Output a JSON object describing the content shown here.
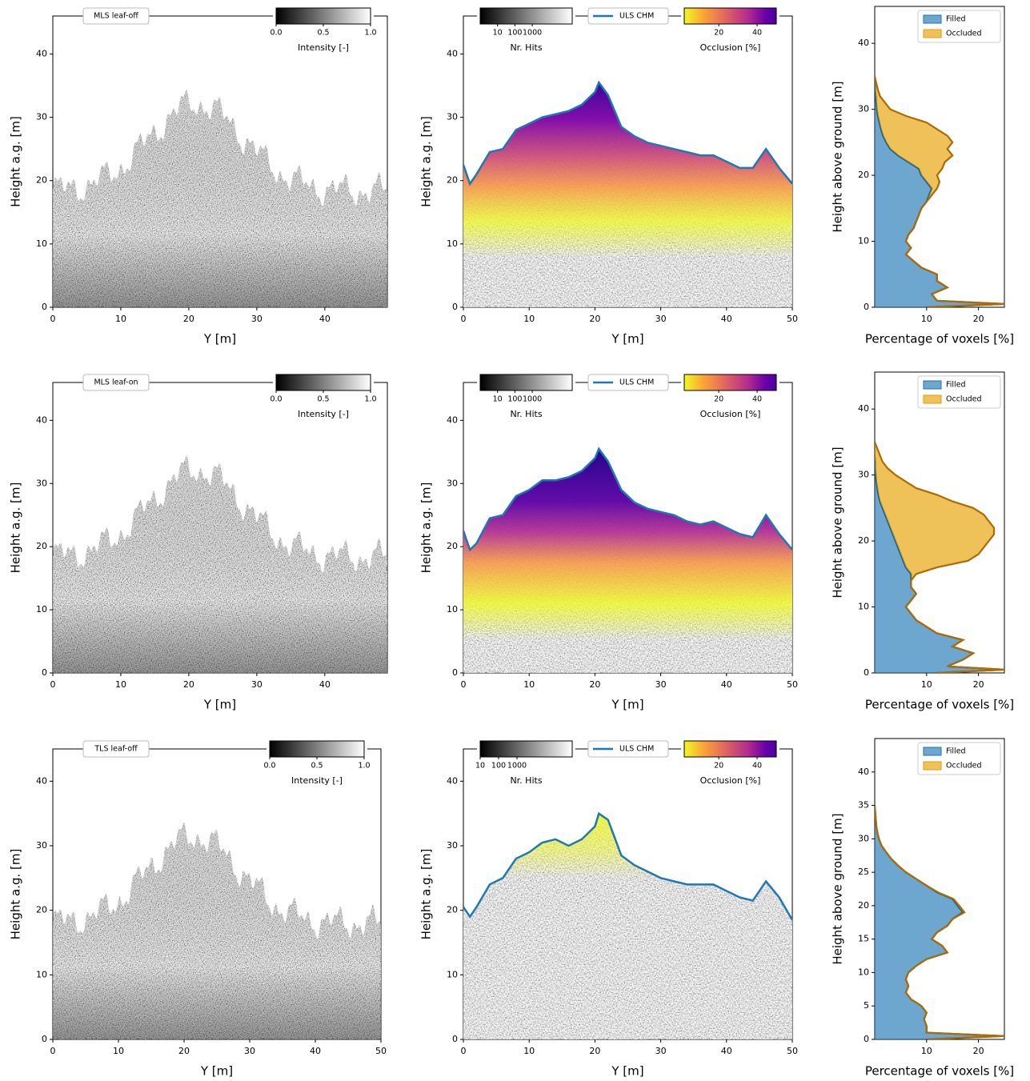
{
  "chart_data": [
    {
      "type": "pointcloud",
      "label": "MLS leaf-off",
      "xlabel": "Y [m]",
      "ylabel": "Height a.g. [m]",
      "xlim": [
        0,
        49.2
      ],
      "xticks": [
        0,
        10,
        20,
        30,
        40
      ],
      "ylim": [
        0,
        46
      ],
      "yticks": [
        0,
        10,
        20,
        30,
        40
      ],
      "colorbar": {
        "label": "Intensity [-]",
        "colormap": "gray",
        "lim": [
          0,
          1
        ],
        "ticks": [
          {
            "value": 0,
            "label": "0.0"
          },
          {
            "value": 0.5,
            "label": "0.5"
          },
          {
            "value": 1,
            "label": "1.0"
          }
        ]
      }
    },
    {
      "type": "line",
      "xlabel": "Y [m]",
      "ylabel": "Height a.g. [m]",
      "xlim": [
        0,
        50
      ],
      "xticks": [
        0,
        10,
        20,
        30,
        40,
        50
      ],
      "ylim": [
        0,
        46
      ],
      "yticks": [
        0,
        10,
        20,
        30,
        40
      ],
      "x": [
        0,
        1,
        2,
        4,
        6,
        8,
        10,
        12,
        14,
        16,
        18,
        20,
        20.6,
        22,
        24,
        26,
        28,
        30,
        32,
        34,
        36,
        38,
        40,
        42,
        44,
        46,
        48,
        50
      ],
      "series": [
        {
          "name": "ULS CHM",
          "color": "#1f77b4",
          "values": [
            22.5,
            19.5,
            21,
            24.5,
            25,
            28,
            29,
            30,
            30.5,
            31,
            32,
            34,
            35.5,
            33.5,
            28.5,
            27,
            26,
            25.5,
            25,
            24.5,
            24,
            24,
            23,
            22,
            22,
            25,
            22,
            19.5
          ]
        }
      ],
      "colorbars": [
        {
          "label": "Nr. Hits",
          "colormap": "gray",
          "log": true,
          "lim": [
            1,
            200000
          ],
          "ticks": [
            10,
            100,
            1000
          ]
        },
        {
          "label": "Occlusion [%]",
          "colormap": "plasma_r",
          "lim": [
            2,
            50
          ],
          "ticks": [
            20,
            40
          ]
        }
      ]
    },
    {
      "type": "area",
      "stacked": true,
      "xlabel": "Percentage of voxels [%]",
      "ylabel": "Height above ground [m]",
      "xlim": [
        0,
        25
      ],
      "xticks": [
        10,
        20
      ],
      "ylim": [
        0,
        45.6
      ],
      "yticks": [
        0,
        10,
        20,
        30,
        40
      ],
      "legend": "upper right",
      "y": [
        0,
        0.5,
        1,
        2,
        3,
        4,
        5,
        6,
        7,
        8,
        9,
        10,
        11,
        12,
        13,
        14,
        15,
        16,
        17,
        18,
        19,
        20,
        21,
        22,
        23,
        24,
        25,
        26,
        27,
        28,
        29,
        30,
        31,
        32,
        33,
        34,
        35
      ],
      "series": [
        {
          "name": "Filled",
          "color": "#1f77b4",
          "edge": "#0b5a8a",
          "values": [
            10,
            25,
            12,
            11,
            14,
            12,
            12,
            9,
            7.5,
            6,
            7,
            6,
            6.5,
            7.5,
            8,
            8.5,
            9,
            10,
            10.5,
            11,
            10,
            9,
            8.5,
            6.5,
            4.5,
            3,
            2.2,
            1.6,
            1.2,
            0.9,
            0.6,
            0.4,
            0.3,
            0.2,
            0.1,
            0.1,
            0
          ]
        },
        {
          "name": "Occluded",
          "color": "#e69f00",
          "edge": "#b06a00",
          "values": [
            0,
            0,
            0,
            0,
            0,
            0,
            0,
            0,
            0,
            0,
            0,
            0,
            0,
            0,
            0,
            0,
            0,
            0,
            0.5,
            1,
            2.5,
            3,
            4.5,
            7,
            10.5,
            11,
            12.8,
            12.4,
            10.8,
            9.1,
            5.4,
            2.6,
            1.7,
            0.8,
            0.5,
            0.2,
            0
          ]
        }
      ]
    },
    {
      "type": "pointcloud",
      "label": "MLS leaf-on",
      "xlabel": "Y [m]",
      "ylabel": "Height a.g. [m]",
      "xlim": [
        0,
        49.2
      ],
      "xticks": [
        0,
        10,
        20,
        30,
        40
      ],
      "ylim": [
        0,
        46
      ],
      "yticks": [
        0,
        10,
        20,
        30,
        40
      ],
      "colorbar": {
        "label": "Intensity [-]",
        "colormap": "gray",
        "lim": [
          0,
          1
        ],
        "ticks": [
          {
            "value": 0,
            "label": "0.0"
          },
          {
            "value": 0.5,
            "label": "0.5"
          },
          {
            "value": 1,
            "label": "1.0"
          }
        ]
      }
    },
    {
      "type": "line",
      "xlabel": "Y [m]",
      "ylabel": "Height a.g. [m]",
      "xlim": [
        0,
        50
      ],
      "xticks": [
        0,
        10,
        20,
        30,
        40,
        50
      ],
      "ylim": [
        0,
        46
      ],
      "yticks": [
        0,
        10,
        20,
        30,
        40
      ],
      "x": [
        0,
        1,
        2,
        4,
        6,
        8,
        10,
        12,
        14,
        16,
        18,
        20,
        20.6,
        22,
        24,
        26,
        28,
        30,
        32,
        34,
        36,
        38,
        40,
        42,
        44,
        46,
        48,
        50
      ],
      "series": [
        {
          "name": "ULS CHM",
          "color": "#1f77b4",
          "values": [
            22.5,
            19.5,
            20.5,
            24.5,
            25,
            28,
            29,
            30.5,
            30.5,
            31,
            32,
            34,
            35.5,
            33.5,
            29,
            27,
            26,
            25.5,
            25,
            24,
            23.5,
            24,
            23,
            22,
            21.5,
            25,
            22,
            19.5
          ]
        }
      ],
      "colorbars": [
        {
          "label": "Nr. Hits",
          "colormap": "gray",
          "log": true,
          "lim": [
            1,
            200000
          ],
          "ticks": [
            10,
            100,
            1000
          ]
        },
        {
          "label": "Occlusion [%]",
          "colormap": "plasma_r",
          "lim": [
            2,
            50
          ],
          "ticks": [
            20,
            40
          ]
        }
      ]
    },
    {
      "type": "area",
      "stacked": true,
      "xlabel": "Percentage of voxels [%]",
      "ylabel": "Height above ground [m]",
      "xlim": [
        0,
        25
      ],
      "xticks": [
        10,
        20
      ],
      "ylim": [
        0,
        45.6
      ],
      "yticks": [
        0,
        10,
        20,
        30,
        40
      ],
      "legend": "upper right",
      "y": [
        0,
        0.5,
        1,
        2,
        3,
        4,
        5,
        6,
        7,
        8,
        9,
        10,
        11,
        12,
        13,
        14,
        15,
        16,
        17,
        18,
        19,
        20,
        21,
        22,
        23,
        24,
        25,
        26,
        27,
        28,
        29,
        30,
        31,
        32,
        33,
        34,
        35
      ],
      "series": [
        {
          "name": "Filled",
          "color": "#1f77b4",
          "edge": "#0b5a8a",
          "values": [
            12,
            25,
            14,
            17,
            19,
            15,
            17,
            12,
            10,
            8,
            7,
            6,
            7,
            8,
            7,
            7,
            7,
            6,
            5.5,
            5,
            4.5,
            4,
            3.5,
            3,
            2.5,
            2,
            1.5,
            1,
            0.7,
            0.5,
            0.3,
            0.2,
            0.1,
            0.1,
            0,
            0,
            0
          ]
        },
        {
          "name": "Occluded",
          "color": "#e69f00",
          "edge": "#b06a00",
          "values": [
            0,
            0,
            0,
            0,
            0,
            0,
            0,
            0,
            0,
            0,
            0,
            0,
            0,
            0,
            0,
            0,
            1,
            6,
            12.5,
            15,
            16.5,
            18,
            19.5,
            20,
            19.5,
            19,
            17.5,
            14,
            11.3,
            7.5,
            5.7,
            3.8,
            2.4,
            1.4,
            1,
            0.5,
            0
          ]
        }
      ]
    },
    {
      "type": "pointcloud",
      "label": "TLS leaf-off",
      "xlabel": "Y [m]",
      "ylabel": "Height a.g. [m]",
      "xlim": [
        0,
        50
      ],
      "xticks": [
        0,
        10,
        20,
        30,
        40,
        50
      ],
      "ylim": [
        0,
        45
      ],
      "yticks": [
        0,
        10,
        20,
        30,
        40
      ],
      "colorbar": {
        "label": "Intensity [-]",
        "colormap": "gray",
        "lim": [
          0,
          1
        ],
        "ticks": [
          {
            "value": 0,
            "label": "0.0"
          },
          {
            "value": 0.5,
            "label": "0.5"
          },
          {
            "value": 1,
            "label": "1.0"
          }
        ]
      }
    },
    {
      "type": "line",
      "xlabel": "Y [m]",
      "ylabel": "Height a.g. [m]",
      "xlim": [
        0,
        50
      ],
      "xticks": [
        0,
        10,
        20,
        30,
        40,
        50
      ],
      "ylim": [
        0,
        45
      ],
      "yticks": [
        0,
        10,
        20,
        30,
        40
      ],
      "x": [
        0,
        1,
        2,
        4,
        6,
        8,
        10,
        12,
        14,
        16,
        18,
        20,
        20.6,
        22,
        24,
        26,
        28,
        30,
        32,
        34,
        36,
        38,
        40,
        42,
        44,
        46,
        48,
        50
      ],
      "series": [
        {
          "name": "ULS CHM",
          "color": "#1f77b4",
          "values": [
            20.5,
            19,
            20.5,
            24,
            25,
            28,
            29,
            30.5,
            31,
            30,
            31,
            33,
            35,
            34,
            28.5,
            27,
            26,
            25,
            24.5,
            24,
            24,
            24,
            23,
            22,
            21.5,
            24.5,
            22,
            18.5
          ]
        }
      ],
      "colorbars": [
        {
          "label": "Nr. Hits",
          "colormap": "gray",
          "log": true,
          "lim": [
            10,
            1000000
          ],
          "ticks": [
            10,
            100,
            1000
          ]
        },
        {
          "label": "Occlusion [%]",
          "colormap": "plasma_r",
          "lim": [
            2,
            50
          ],
          "ticks": [
            20,
            40
          ]
        }
      ]
    },
    {
      "type": "area",
      "stacked": true,
      "xlabel": "Percentage of voxels [%]",
      "ylabel": "Height above ground [m]",
      "xlim": [
        0,
        25
      ],
      "xticks": [
        10,
        20
      ],
      "ylim": [
        0,
        45
      ],
      "yticks": [
        0,
        5,
        10,
        15,
        20,
        25,
        30,
        35,
        40
      ],
      "legend": "upper right",
      "y": [
        0,
        0.5,
        1,
        2,
        3,
        4,
        5,
        6,
        7,
        8,
        9,
        10,
        11,
        12,
        13,
        14,
        15,
        16,
        17,
        18,
        19,
        20,
        21,
        22,
        23,
        24,
        25,
        26,
        27,
        28,
        29,
        30,
        31,
        32,
        33,
        34,
        35
      ],
      "series": [
        {
          "name": "Filled",
          "color": "#1f77b4",
          "edge": "#0b5a8a",
          "values": [
            10,
            25,
            10,
            10,
            9.5,
            10,
            9,
            7,
            6,
            6.5,
            6,
            6.5,
            8,
            10,
            14,
            13,
            11,
            12,
            14,
            15,
            17,
            16,
            15,
            12,
            10,
            8,
            6,
            4.5,
            3.2,
            2.2,
            1.3,
            0.8,
            0.5,
            0.3,
            0.2,
            0.1,
            0
          ]
        },
        {
          "name": "Occluded",
          "color": "#e69f00",
          "edge": "#b06a00",
          "values": [
            0,
            0,
            0,
            0,
            0,
            0,
            0,
            0,
            0,
            0,
            0,
            0,
            0,
            0,
            0,
            0,
            0,
            0,
            0,
            0,
            0.3,
            0.3,
            0.2,
            0.2,
            0,
            0,
            0,
            0,
            0,
            0,
            0,
            0,
            0,
            0,
            0,
            0,
            0
          ]
        }
      ]
    }
  ]
}
